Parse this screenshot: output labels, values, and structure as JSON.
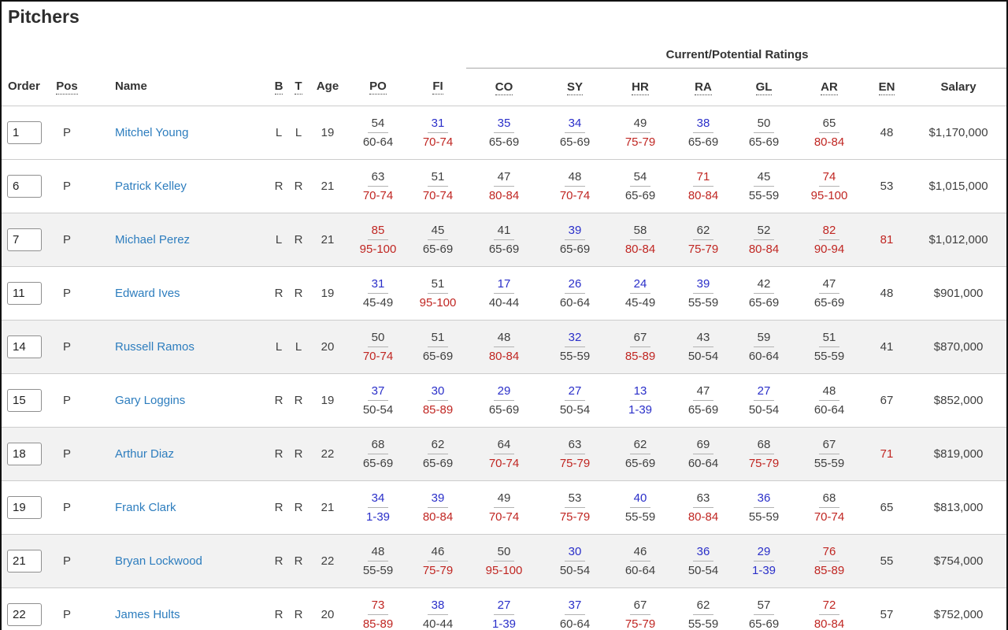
{
  "page": {
    "title": "Pitchers"
  },
  "colors": {
    "link_blue": "#2d7dbe",
    "rating_blue": "#2a2fc9",
    "rating_red": "#c02622",
    "rating_gray": "#3f3f3f",
    "shaded_row_bg": "#f2f2f2",
    "row_divider": "#cccccc"
  },
  "table": {
    "group_header": "Current/Potential Ratings",
    "columns": [
      {
        "key": "order",
        "label": "Order",
        "dotted": false,
        "align": "left"
      },
      {
        "key": "pos",
        "label": "Pos",
        "dotted": true,
        "align": "center"
      },
      {
        "key": "name",
        "label": "Name",
        "dotted": false,
        "align": "left"
      },
      {
        "key": "b",
        "label": "B",
        "dotted": true,
        "align": "center"
      },
      {
        "key": "t",
        "label": "T",
        "dotted": true,
        "align": "center"
      },
      {
        "key": "age",
        "label": "Age",
        "dotted": false,
        "align": "center"
      },
      {
        "key": "po",
        "label": "PO",
        "dotted": true,
        "align": "center"
      },
      {
        "key": "fi",
        "label": "FI",
        "dotted": true,
        "align": "center"
      },
      {
        "key": "co",
        "label": "CO",
        "dotted": true,
        "align": "center"
      },
      {
        "key": "sy",
        "label": "SY",
        "dotted": true,
        "align": "center"
      },
      {
        "key": "hr",
        "label": "HR",
        "dotted": true,
        "align": "center"
      },
      {
        "key": "ra",
        "label": "RA",
        "dotted": true,
        "align": "center"
      },
      {
        "key": "gl",
        "label": "GL",
        "dotted": true,
        "align": "center"
      },
      {
        "key": "ar",
        "label": "AR",
        "dotted": true,
        "align": "center"
      },
      {
        "key": "en",
        "label": "EN",
        "dotted": true,
        "align": "center"
      },
      {
        "key": "salary",
        "label": "Salary",
        "dotted": false,
        "align": "center"
      }
    ],
    "rating_keys": [
      "po",
      "fi",
      "co",
      "sy",
      "hr",
      "ra",
      "gl",
      "ar"
    ],
    "rows": [
      {
        "order": "1",
        "pos": "P",
        "name": "Mitchel Young",
        "b": "L",
        "t": "L",
        "age": "19",
        "shaded": false,
        "ratings": {
          "po": {
            "cur": "54",
            "cc": "g",
            "pot": "60-64",
            "pc": "g"
          },
          "fi": {
            "cur": "31",
            "cc": "b",
            "pot": "70-74",
            "pc": "r"
          },
          "co": {
            "cur": "35",
            "cc": "b",
            "pot": "65-69",
            "pc": "g"
          },
          "sy": {
            "cur": "34",
            "cc": "b",
            "pot": "65-69",
            "pc": "g"
          },
          "hr": {
            "cur": "49",
            "cc": "g",
            "pot": "75-79",
            "pc": "r"
          },
          "ra": {
            "cur": "38",
            "cc": "b",
            "pot": "65-69",
            "pc": "g"
          },
          "gl": {
            "cur": "50",
            "cc": "g",
            "pot": "65-69",
            "pc": "g"
          },
          "ar": {
            "cur": "65",
            "cc": "g",
            "pot": "80-84",
            "pc": "r"
          }
        },
        "en": {
          "val": "48",
          "c": "g"
        },
        "salary": "$1,170,000"
      },
      {
        "order": "6",
        "pos": "P",
        "name": "Patrick Kelley",
        "b": "R",
        "t": "R",
        "age": "21",
        "shaded": false,
        "ratings": {
          "po": {
            "cur": "63",
            "cc": "g",
            "pot": "70-74",
            "pc": "r"
          },
          "fi": {
            "cur": "51",
            "cc": "g",
            "pot": "70-74",
            "pc": "r"
          },
          "co": {
            "cur": "47",
            "cc": "g",
            "pot": "80-84",
            "pc": "r"
          },
          "sy": {
            "cur": "48",
            "cc": "g",
            "pot": "70-74",
            "pc": "r"
          },
          "hr": {
            "cur": "54",
            "cc": "g",
            "pot": "65-69",
            "pc": "g"
          },
          "ra": {
            "cur": "71",
            "cc": "r",
            "pot": "80-84",
            "pc": "r"
          },
          "gl": {
            "cur": "45",
            "cc": "g",
            "pot": "55-59",
            "pc": "g"
          },
          "ar": {
            "cur": "74",
            "cc": "r",
            "pot": "95-100",
            "pc": "r"
          }
        },
        "en": {
          "val": "53",
          "c": "g"
        },
        "salary": "$1,015,000"
      },
      {
        "order": "7",
        "pos": "P",
        "name": "Michael Perez",
        "b": "L",
        "t": "R",
        "age": "21",
        "shaded": true,
        "ratings": {
          "po": {
            "cur": "85",
            "cc": "r",
            "pot": "95-100",
            "pc": "r"
          },
          "fi": {
            "cur": "45",
            "cc": "g",
            "pot": "65-69",
            "pc": "g"
          },
          "co": {
            "cur": "41",
            "cc": "g",
            "pot": "65-69",
            "pc": "g"
          },
          "sy": {
            "cur": "39",
            "cc": "b",
            "pot": "65-69",
            "pc": "g"
          },
          "hr": {
            "cur": "58",
            "cc": "g",
            "pot": "80-84",
            "pc": "r"
          },
          "ra": {
            "cur": "62",
            "cc": "g",
            "pot": "75-79",
            "pc": "r"
          },
          "gl": {
            "cur": "52",
            "cc": "g",
            "pot": "80-84",
            "pc": "r"
          },
          "ar": {
            "cur": "82",
            "cc": "r",
            "pot": "90-94",
            "pc": "r"
          }
        },
        "en": {
          "val": "81",
          "c": "r"
        },
        "salary": "$1,012,000"
      },
      {
        "order": "11",
        "pos": "P",
        "name": "Edward Ives",
        "b": "R",
        "t": "R",
        "age": "19",
        "shaded": false,
        "ratings": {
          "po": {
            "cur": "31",
            "cc": "b",
            "pot": "45-49",
            "pc": "g"
          },
          "fi": {
            "cur": "51",
            "cc": "g",
            "pot": "95-100",
            "pc": "r"
          },
          "co": {
            "cur": "17",
            "cc": "b",
            "pot": "40-44",
            "pc": "g"
          },
          "sy": {
            "cur": "26",
            "cc": "b",
            "pot": "60-64",
            "pc": "g"
          },
          "hr": {
            "cur": "24",
            "cc": "b",
            "pot": "45-49",
            "pc": "g"
          },
          "ra": {
            "cur": "39",
            "cc": "b",
            "pot": "55-59",
            "pc": "g"
          },
          "gl": {
            "cur": "42",
            "cc": "g",
            "pot": "65-69",
            "pc": "g"
          },
          "ar": {
            "cur": "47",
            "cc": "g",
            "pot": "65-69",
            "pc": "g"
          }
        },
        "en": {
          "val": "48",
          "c": "g"
        },
        "salary": "$901,000"
      },
      {
        "order": "14",
        "pos": "P",
        "name": "Russell Ramos",
        "b": "L",
        "t": "L",
        "age": "20",
        "shaded": true,
        "ratings": {
          "po": {
            "cur": "50",
            "cc": "g",
            "pot": "70-74",
            "pc": "r"
          },
          "fi": {
            "cur": "51",
            "cc": "g",
            "pot": "65-69",
            "pc": "g"
          },
          "co": {
            "cur": "48",
            "cc": "g",
            "pot": "80-84",
            "pc": "r"
          },
          "sy": {
            "cur": "32",
            "cc": "b",
            "pot": "55-59",
            "pc": "g"
          },
          "hr": {
            "cur": "67",
            "cc": "g",
            "pot": "85-89",
            "pc": "r"
          },
          "ra": {
            "cur": "43",
            "cc": "g",
            "pot": "50-54",
            "pc": "g"
          },
          "gl": {
            "cur": "59",
            "cc": "g",
            "pot": "60-64",
            "pc": "g"
          },
          "ar": {
            "cur": "51",
            "cc": "g",
            "pot": "55-59",
            "pc": "g"
          }
        },
        "en": {
          "val": "41",
          "c": "g"
        },
        "salary": "$870,000"
      },
      {
        "order": "15",
        "pos": "P",
        "name": "Gary Loggins",
        "b": "R",
        "t": "R",
        "age": "19",
        "shaded": false,
        "ratings": {
          "po": {
            "cur": "37",
            "cc": "b",
            "pot": "50-54",
            "pc": "g"
          },
          "fi": {
            "cur": "30",
            "cc": "b",
            "pot": "85-89",
            "pc": "r"
          },
          "co": {
            "cur": "29",
            "cc": "b",
            "pot": "65-69",
            "pc": "g"
          },
          "sy": {
            "cur": "27",
            "cc": "b",
            "pot": "50-54",
            "pc": "g"
          },
          "hr": {
            "cur": "13",
            "cc": "b",
            "pot": "1-39",
            "pc": "b"
          },
          "ra": {
            "cur": "47",
            "cc": "g",
            "pot": "65-69",
            "pc": "g"
          },
          "gl": {
            "cur": "27",
            "cc": "b",
            "pot": "50-54",
            "pc": "g"
          },
          "ar": {
            "cur": "48",
            "cc": "g",
            "pot": "60-64",
            "pc": "g"
          }
        },
        "en": {
          "val": "67",
          "c": "g"
        },
        "salary": "$852,000"
      },
      {
        "order": "18",
        "pos": "P",
        "name": "Arthur Diaz",
        "b": "R",
        "t": "R",
        "age": "22",
        "shaded": true,
        "ratings": {
          "po": {
            "cur": "68",
            "cc": "g",
            "pot": "65-69",
            "pc": "g"
          },
          "fi": {
            "cur": "62",
            "cc": "g",
            "pot": "65-69",
            "pc": "g"
          },
          "co": {
            "cur": "64",
            "cc": "g",
            "pot": "70-74",
            "pc": "r"
          },
          "sy": {
            "cur": "63",
            "cc": "g",
            "pot": "75-79",
            "pc": "r"
          },
          "hr": {
            "cur": "62",
            "cc": "g",
            "pot": "65-69",
            "pc": "g"
          },
          "ra": {
            "cur": "69",
            "cc": "g",
            "pot": "60-64",
            "pc": "g"
          },
          "gl": {
            "cur": "68",
            "cc": "g",
            "pot": "75-79",
            "pc": "r"
          },
          "ar": {
            "cur": "67",
            "cc": "g",
            "pot": "55-59",
            "pc": "g"
          }
        },
        "en": {
          "val": "71",
          "c": "r"
        },
        "salary": "$819,000"
      },
      {
        "order": "19",
        "pos": "P",
        "name": "Frank Clark",
        "b": "R",
        "t": "R",
        "age": "21",
        "shaded": false,
        "ratings": {
          "po": {
            "cur": "34",
            "cc": "b",
            "pot": "1-39",
            "pc": "b"
          },
          "fi": {
            "cur": "39",
            "cc": "b",
            "pot": "80-84",
            "pc": "r"
          },
          "co": {
            "cur": "49",
            "cc": "g",
            "pot": "70-74",
            "pc": "r"
          },
          "sy": {
            "cur": "53",
            "cc": "g",
            "pot": "75-79",
            "pc": "r"
          },
          "hr": {
            "cur": "40",
            "cc": "b",
            "pot": "55-59",
            "pc": "g"
          },
          "ra": {
            "cur": "63",
            "cc": "g",
            "pot": "80-84",
            "pc": "r"
          },
          "gl": {
            "cur": "36",
            "cc": "b",
            "pot": "55-59",
            "pc": "g"
          },
          "ar": {
            "cur": "68",
            "cc": "g",
            "pot": "70-74",
            "pc": "r"
          }
        },
        "en": {
          "val": "65",
          "c": "g"
        },
        "salary": "$813,000"
      },
      {
        "order": "21",
        "pos": "P",
        "name": "Bryan Lockwood",
        "b": "R",
        "t": "R",
        "age": "22",
        "shaded": true,
        "ratings": {
          "po": {
            "cur": "48",
            "cc": "g",
            "pot": "55-59",
            "pc": "g"
          },
          "fi": {
            "cur": "46",
            "cc": "g",
            "pot": "75-79",
            "pc": "r"
          },
          "co": {
            "cur": "50",
            "cc": "g",
            "pot": "95-100",
            "pc": "r"
          },
          "sy": {
            "cur": "30",
            "cc": "b",
            "pot": "50-54",
            "pc": "g"
          },
          "hr": {
            "cur": "46",
            "cc": "g",
            "pot": "60-64",
            "pc": "g"
          },
          "ra": {
            "cur": "36",
            "cc": "b",
            "pot": "50-54",
            "pc": "g"
          },
          "gl": {
            "cur": "29",
            "cc": "b",
            "pot": "1-39",
            "pc": "b"
          },
          "ar": {
            "cur": "76",
            "cc": "r",
            "pot": "85-89",
            "pc": "r"
          }
        },
        "en": {
          "val": "55",
          "c": "g"
        },
        "salary": "$754,000"
      },
      {
        "order": "22",
        "pos": "P",
        "name": "James Hults",
        "b": "R",
        "t": "R",
        "age": "20",
        "shaded": false,
        "ratings": {
          "po": {
            "cur": "73",
            "cc": "r",
            "pot": "85-89",
            "pc": "r"
          },
          "fi": {
            "cur": "38",
            "cc": "b",
            "pot": "40-44",
            "pc": "g"
          },
          "co": {
            "cur": "27",
            "cc": "b",
            "pot": "1-39",
            "pc": "b"
          },
          "sy": {
            "cur": "37",
            "cc": "b",
            "pot": "60-64",
            "pc": "g"
          },
          "hr": {
            "cur": "67",
            "cc": "g",
            "pot": "75-79",
            "pc": "r"
          },
          "ra": {
            "cur": "62",
            "cc": "g",
            "pot": "55-59",
            "pc": "g"
          },
          "gl": {
            "cur": "57",
            "cc": "g",
            "pot": "65-69",
            "pc": "g"
          },
          "ar": {
            "cur": "72",
            "cc": "r",
            "pot": "80-84",
            "pc": "r"
          }
        },
        "en": {
          "val": "57",
          "c": "g"
        },
        "salary": "$752,000"
      }
    ]
  }
}
